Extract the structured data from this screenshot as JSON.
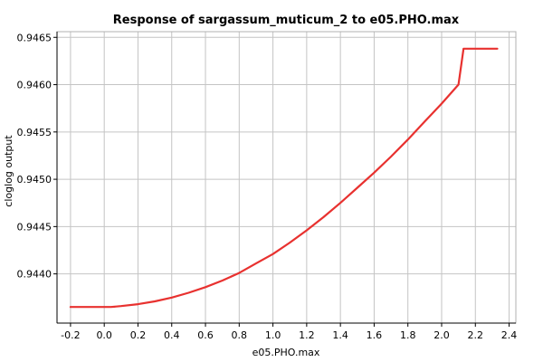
{
  "chart_data": {
    "type": "line",
    "title": "Response of sargassum_muticum_2 to e05.PHO.max",
    "xlabel": "e05.PHO.max",
    "ylabel": "cloglog output",
    "xlim": [
      -0.28,
      2.44
    ],
    "ylim": [
      0.94348,
      0.94656
    ],
    "x_ticks": [
      -0.2,
      0.0,
      0.2,
      0.4,
      0.6,
      0.8,
      1.0,
      1.2,
      1.4,
      1.6,
      1.8,
      2.0,
      2.2,
      2.4
    ],
    "x_tick_labels": [
      "-0.2",
      "0.0",
      "0.2",
      "0.4",
      "0.6",
      "0.8",
      "1.0",
      "1.2",
      "1.4",
      "1.6",
      "1.8",
      "2.0",
      "2.2",
      "2.4"
    ],
    "y_ticks": [
      0.944,
      0.9445,
      0.945,
      0.9455,
      0.946,
      0.9465
    ],
    "y_tick_labels": [
      "0.9440",
      "0.9445",
      "0.9450",
      "0.9455",
      "0.9460",
      "0.9465"
    ],
    "grid": true,
    "series": [
      {
        "color": "#e8312f",
        "x": [
          -0.2,
          0.04,
          0.1,
          0.2,
          0.3,
          0.4,
          0.5,
          0.6,
          0.7,
          0.8,
          0.9,
          1.0,
          1.1,
          1.2,
          1.3,
          1.4,
          1.5,
          1.6,
          1.7,
          1.8,
          1.9,
          2.0,
          2.1,
          2.13,
          2.33
        ],
        "y": [
          0.94365,
          0.94365,
          0.94366,
          0.94368,
          0.94371,
          0.94375,
          0.9438,
          0.94386,
          0.94393,
          0.94401,
          0.94411,
          0.94421,
          0.94433,
          0.94446,
          0.9446,
          0.94475,
          0.94491,
          0.94507,
          0.94524,
          0.94542,
          0.94561,
          0.9458,
          0.946,
          0.94638,
          0.94638
        ]
      }
    ]
  }
}
